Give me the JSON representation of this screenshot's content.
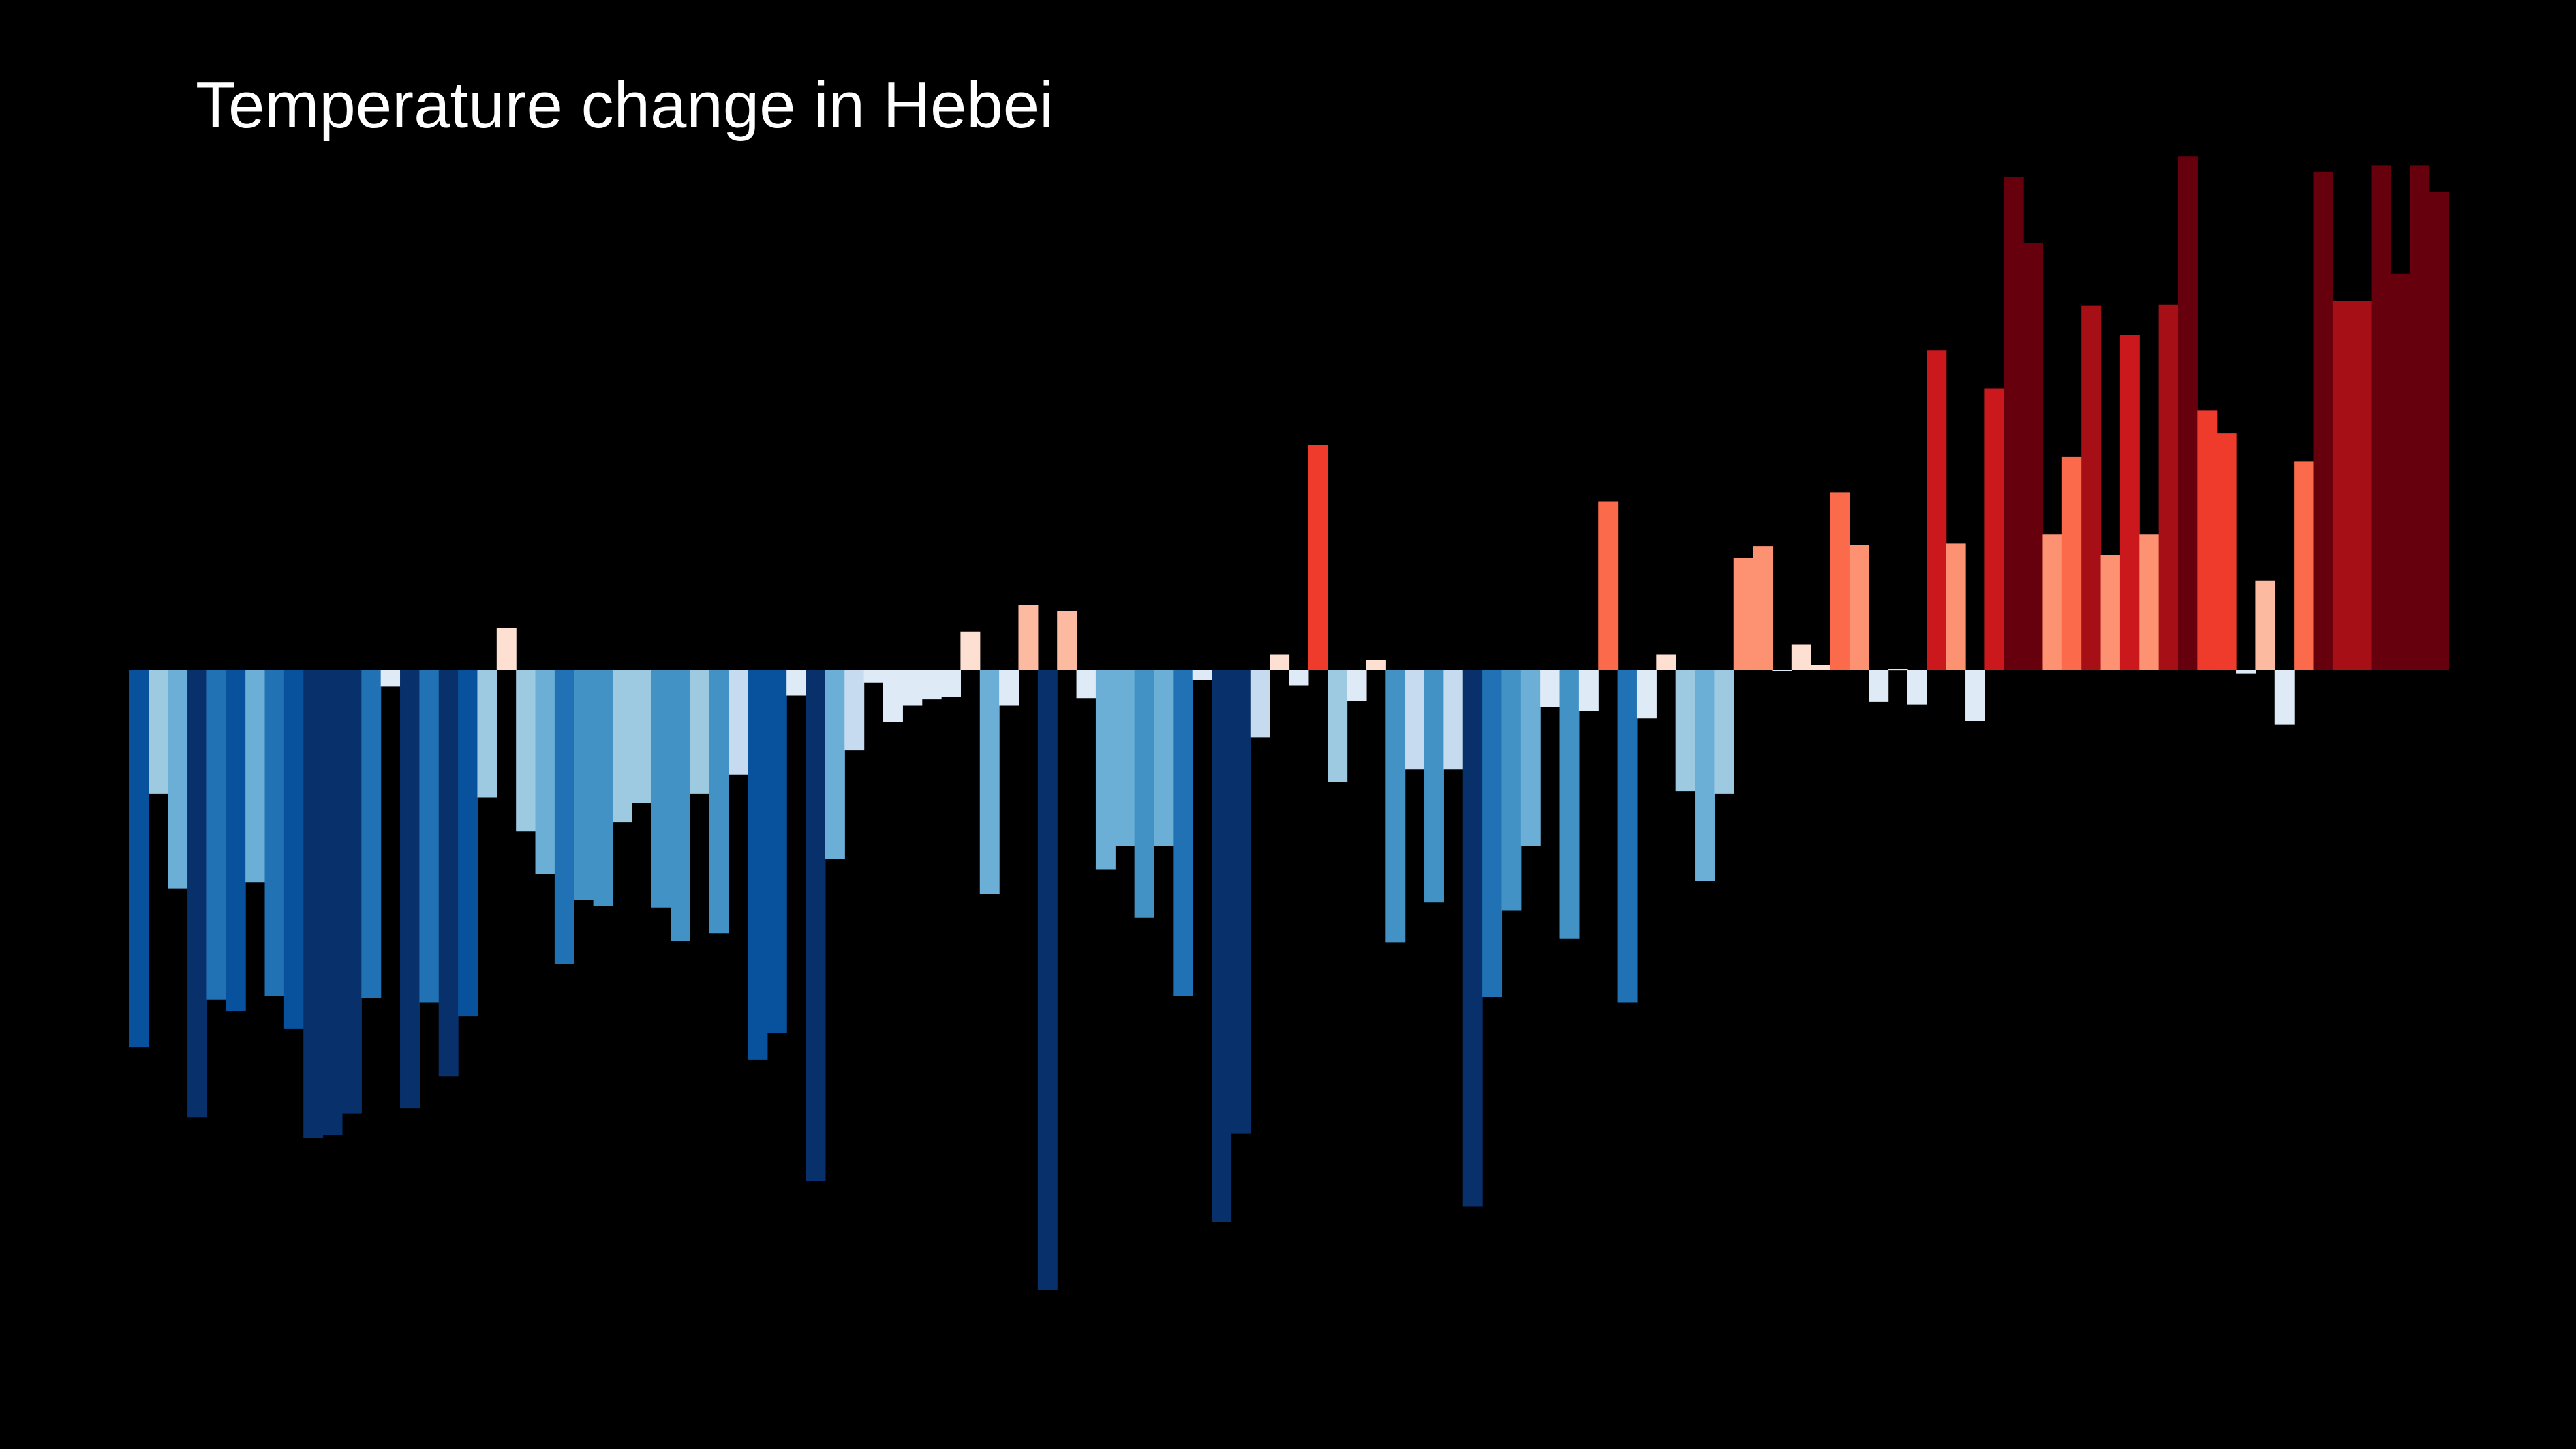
{
  "chart_data": {
    "type": "bar",
    "title": "Temperature change in Hebei",
    "xlabel": "",
    "ylabel": "",
    "grid": false,
    "legend": "none",
    "ylim": [
      -4.8,
      4.0
    ],
    "colors": {
      "background": "#000000",
      "title": "#ffffff",
      "scale": [
        "#08306b",
        "#08519c",
        "#2171b5",
        "#4292c6",
        "#6baed6",
        "#9ecae1",
        "#c6dbef",
        "#deebf7",
        "#fee0d2",
        "#fcbba1",
        "#fc9272",
        "#fb6a4a",
        "#ef3b2c",
        "#cb181d",
        "#a50f15",
        "#67000d"
      ]
    },
    "values": [
      -2.95,
      -0.97,
      -1.71,
      -3.5,
      -2.58,
      -2.67,
      -1.66,
      -2.55,
      -2.81,
      -3.66,
      -3.64,
      -3.47,
      -2.57,
      -0.13,
      -3.43,
      -2.6,
      -3.18,
      -2.71,
      -1.0,
      0.33,
      -1.26,
      -1.6,
      -2.3,
      -1.8,
      -1.85,
      -1.19,
      -1.04,
      -1.86,
      -2.12,
      -0.97,
      -2.06,
      -0.82,
      -3.05,
      -2.84,
      -0.2,
      -4.0,
      -1.48,
      -0.63,
      -0.1,
      -0.41,
      -0.28,
      -0.23,
      -0.21,
      0.3,
      -1.75,
      -0.28,
      0.51,
      -4.85,
      0.46,
      -0.22,
      -1.56,
      -1.38,
      -1.94,
      -1.38,
      -2.55,
      -0.08,
      -4.32,
      -3.63,
      -0.53,
      0.12,
      -0.12,
      1.76,
      -0.88,
      -0.24,
      0.08,
      -2.13,
      -0.78,
      -1.82,
      -0.78,
      -4.2,
      -2.56,
      -1.88,
      -1.38,
      -0.29,
      -2.1,
      -0.32,
      1.32,
      -2.6,
      -0.38,
      0.12,
      -0.95,
      -1.65,
      -0.97,
      0.88,
      0.97,
      -0.01,
      0.2,
      0.04,
      1.39,
      0.98,
      -0.25,
      0.01,
      -0.27,
      2.5,
      0.99,
      -0.4,
      2.2,
      3.86,
      3.34,
      1.06,
      1.67,
      2.85,
      0.9,
      2.62,
      1.06,
      2.86,
      4.02,
      2.03,
      1.85,
      -0.03,
      0.7,
      -0.43,
      1.63,
      3.9,
      2.89,
      2.89,
      3.95,
      3.1,
      3.95,
      3.74
    ]
  }
}
